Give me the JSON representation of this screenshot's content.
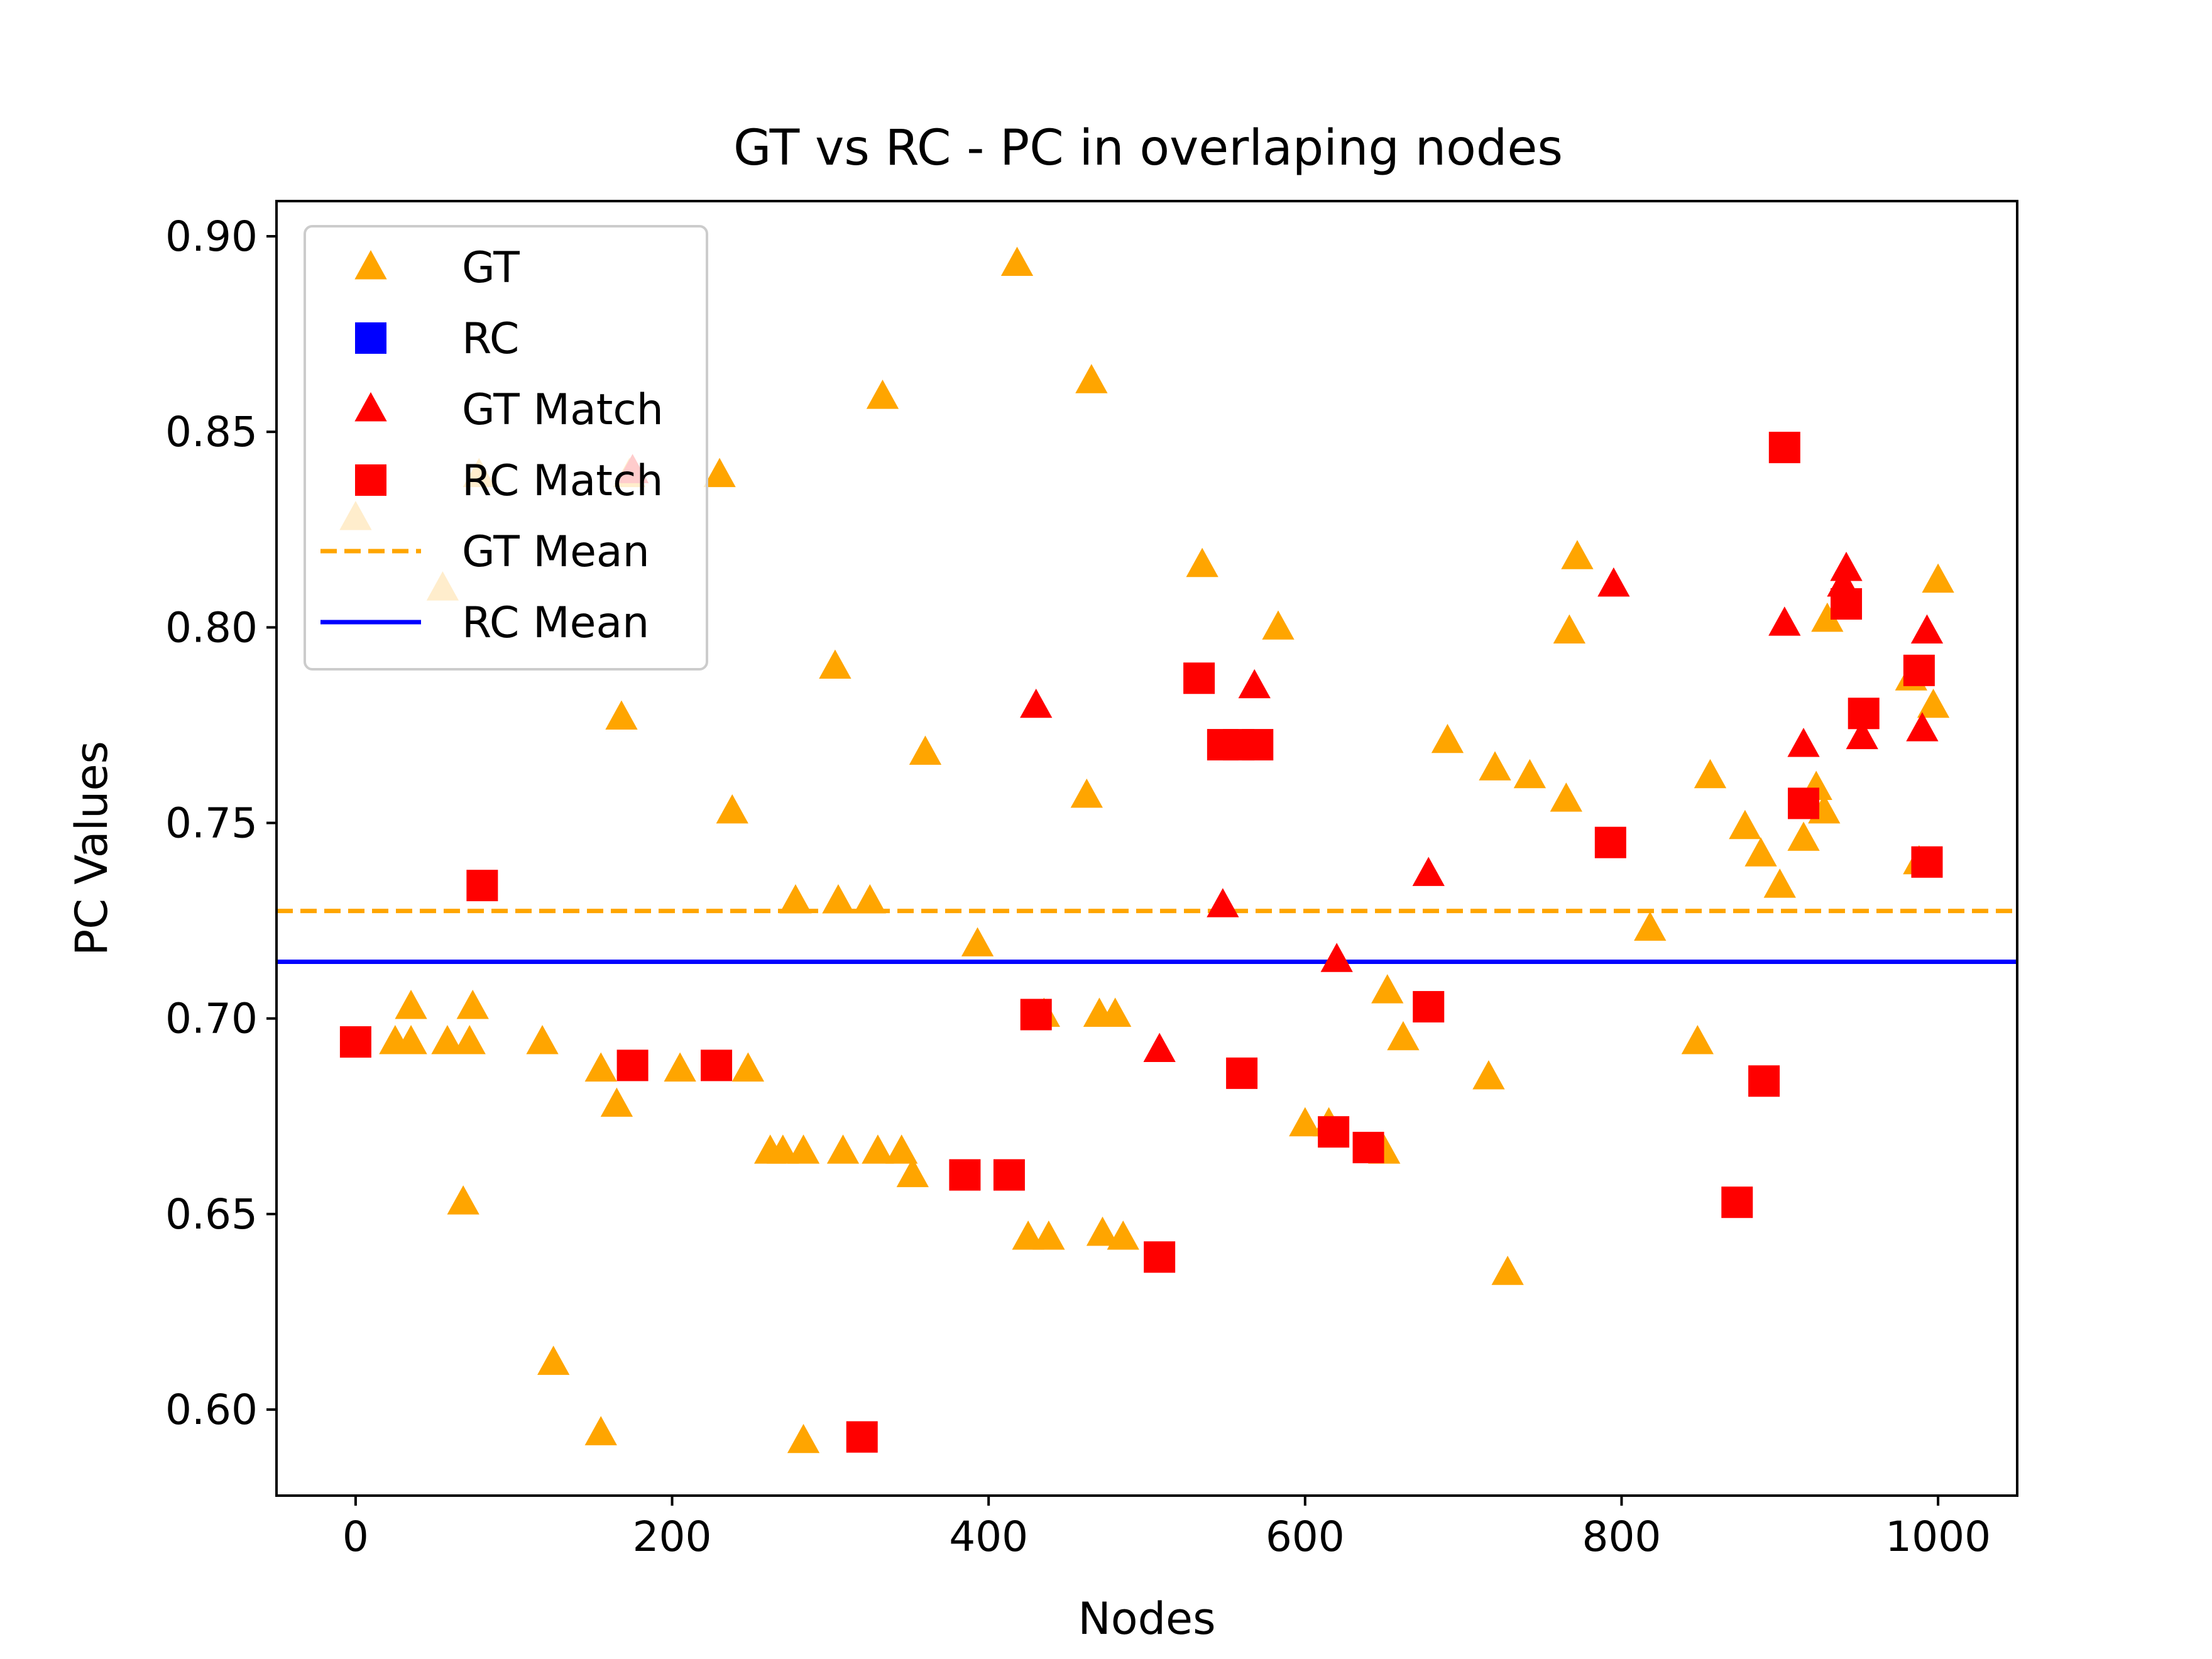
{
  "chart_data": {
    "type": "scatter",
    "title": "GT vs RC - PC in overlaping nodes",
    "xlabel": "Nodes",
    "ylabel": "PC Values",
    "xlim": [
      -50,
      1050
    ],
    "ylim": [
      0.578,
      0.909
    ],
    "xticks": [
      "0",
      "200",
      "400",
      "600",
      "800",
      "1000"
    ],
    "yticks": [
      "0.60",
      "0.65",
      "0.70",
      "0.75",
      "0.80",
      "0.85",
      "0.90"
    ],
    "grid": false,
    "legend_position": "upper-left",
    "series": [
      {
        "name": "GT",
        "marker": "triangle",
        "color": "#FFA500",
        "points": [
          [
            0,
            0.828
          ],
          [
            25,
            0.694
          ],
          [
            35,
            0.694
          ],
          [
            35,
            0.703
          ],
          [
            55,
            0.81
          ],
          [
            58,
            0.694
          ],
          [
            68,
            0.653
          ],
          [
            72,
            0.694
          ],
          [
            74,
            0.703
          ],
          [
            78,
            0.839
          ],
          [
            118,
            0.694
          ],
          [
            125,
            0.612
          ],
          [
            155,
            0.594
          ],
          [
            155,
            0.687
          ],
          [
            165,
            0.678
          ],
          [
            168,
            0.777
          ],
          [
            173,
            0.839
          ],
          [
            205,
            0.687
          ],
          [
            230,
            0.839
          ],
          [
            238,
            0.753
          ],
          [
            248,
            0.687
          ],
          [
            262,
            0.666
          ],
          [
            270,
            0.666
          ],
          [
            278,
            0.73
          ],
          [
            283,
            0.666
          ],
          [
            283,
            0.592
          ],
          [
            303,
            0.79
          ],
          [
            305,
            0.73
          ],
          [
            308,
            0.666
          ],
          [
            325,
            0.73
          ],
          [
            330,
            0.666
          ],
          [
            333,
            0.859
          ],
          [
            345,
            0.666
          ],
          [
            352,
            0.66
          ],
          [
            360,
            0.768
          ],
          [
            393,
            0.719
          ],
          [
            418,
            0.893
          ],
          [
            425,
            0.644
          ],
          [
            435,
            0.701
          ],
          [
            438,
            0.644
          ],
          [
            462,
            0.757
          ],
          [
            465,
            0.863
          ],
          [
            470,
            0.701
          ],
          [
            472,
            0.645
          ],
          [
            480,
            0.701
          ],
          [
            485,
            0.644
          ],
          [
            535,
            0.816
          ],
          [
            583,
            0.8
          ],
          [
            600,
            0.673
          ],
          [
            615,
            0.673
          ],
          [
            650,
            0.666
          ],
          [
            652,
            0.707
          ],
          [
            662,
            0.695
          ],
          [
            690,
            0.771
          ],
          [
            716,
            0.685
          ],
          [
            720,
            0.764
          ],
          [
            728,
            0.635
          ],
          [
            742,
            0.762
          ],
          [
            765,
            0.756
          ],
          [
            767,
            0.799
          ],
          [
            772,
            0.818
          ],
          [
            818,
            0.723
          ],
          [
            848,
            0.694
          ],
          [
            856,
            0.762
          ],
          [
            878,
            0.749
          ],
          [
            888,
            0.742
          ],
          [
            900,
            0.734
          ],
          [
            915,
            0.746
          ],
          [
            923,
            0.759
          ],
          [
            928,
            0.753
          ],
          [
            930,
            0.802
          ],
          [
            983,
            0.787
          ],
          [
            988,
            0.74
          ],
          [
            997,
            0.78
          ],
          [
            1000,
            0.812
          ]
        ]
      },
      {
        "name": "RC",
        "marker": "square",
        "color": "#0000FF",
        "points": []
      },
      {
        "name": "GT Match",
        "marker": "triangle",
        "color": "#FF0000",
        "points": [
          [
            175,
            0.84
          ],
          [
            430,
            0.78
          ],
          [
            508,
            0.692
          ],
          [
            548,
            0.729
          ],
          [
            568,
            0.785
          ],
          [
            620,
            0.715
          ],
          [
            678,
            0.737
          ],
          [
            795,
            0.811
          ],
          [
            903,
            0.801
          ],
          [
            915,
            0.77
          ],
          [
            940,
            0.811
          ],
          [
            942,
            0.815
          ],
          [
            952,
            0.772
          ],
          [
            990,
            0.774
          ],
          [
            993,
            0.799
          ]
        ]
      },
      {
        "name": "RC Match",
        "marker": "square",
        "color": "#FF0000",
        "points": [
          [
            0,
            0.694
          ],
          [
            80,
            0.734
          ],
          [
            175,
            0.688
          ],
          [
            228,
            0.688
          ],
          [
            320,
            0.593
          ],
          [
            385,
            0.66
          ],
          [
            413,
            0.66
          ],
          [
            430,
            0.701
          ],
          [
            508,
            0.639
          ],
          [
            533,
            0.787
          ],
          [
            548,
            0.77
          ],
          [
            558,
            0.77
          ],
          [
            570,
            0.77
          ],
          [
            560,
            0.686
          ],
          [
            618,
            0.671
          ],
          [
            640,
            0.667
          ],
          [
            678,
            0.703
          ],
          [
            793,
            0.745
          ],
          [
            873,
            0.653
          ],
          [
            890,
            0.684
          ],
          [
            903,
            0.846
          ],
          [
            915,
            0.755
          ],
          [
            942,
            0.806
          ],
          [
            953,
            0.778
          ],
          [
            988,
            0.789
          ],
          [
            993,
            0.74
          ]
        ]
      },
      {
        "name": "GT Mean",
        "marker": "dashed-line",
        "color": "#FFA500",
        "value": 0.7275
      },
      {
        "name": "RC Mean",
        "marker": "solid-line",
        "color": "#0000FF",
        "value": 0.7145
      }
    ]
  }
}
